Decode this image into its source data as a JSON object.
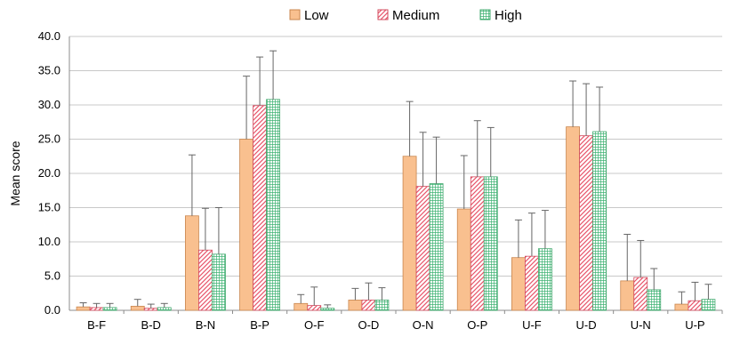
{
  "chart_data": {
    "type": "bar",
    "title": "",
    "xlabel": "",
    "ylabel": "Mean score",
    "ylim": [
      0,
      40
    ],
    "yticks": [
      "0.0",
      "5.0",
      "10.0",
      "15.0",
      "20.0",
      "25.0",
      "30.0",
      "35.0",
      "40.0"
    ],
    "grid": true,
    "legend_position": "top",
    "error_bars": "upper only",
    "categories": [
      "B-F",
      "B-D",
      "B-N",
      "B-P",
      "O-F",
      "O-D",
      "O-N",
      "O-P",
      "U-F",
      "U-D",
      "U-N",
      "U-P"
    ],
    "series": [
      {
        "name": "Low",
        "color": "#f9c08f",
        "pattern": "solid",
        "values": [
          0.5,
          0.6,
          13.8,
          25.0,
          1.0,
          1.5,
          22.5,
          14.8,
          7.7,
          26.8,
          4.3,
          0.9
        ],
        "error": [
          0.6,
          1.0,
          8.9,
          9.2,
          1.3,
          1.7,
          8.0,
          7.8,
          5.5,
          6.7,
          6.8,
          1.8
        ]
      },
      {
        "name": "Medium",
        "color": "#e8546a",
        "pattern": "diagonal-hatch",
        "values": [
          0.4,
          0.3,
          8.8,
          29.9,
          0.7,
          1.5,
          18.1,
          19.5,
          7.9,
          25.5,
          4.8,
          1.4
        ],
        "error": [
          0.6,
          0.6,
          6.1,
          7.1,
          2.7,
          2.5,
          7.9,
          8.2,
          6.3,
          7.6,
          5.4,
          2.7
        ]
      },
      {
        "name": "High",
        "color": "#3fb373",
        "pattern": "grid-hatch",
        "values": [
          0.4,
          0.4,
          8.2,
          30.8,
          0.3,
          1.5,
          18.5,
          19.5,
          9.0,
          26.1,
          3.0,
          1.6
        ],
        "error": [
          0.6,
          0.6,
          6.8,
          7.1,
          0.5,
          1.8,
          6.8,
          7.2,
          5.6,
          6.5,
          3.1,
          2.2
        ]
      }
    ]
  }
}
